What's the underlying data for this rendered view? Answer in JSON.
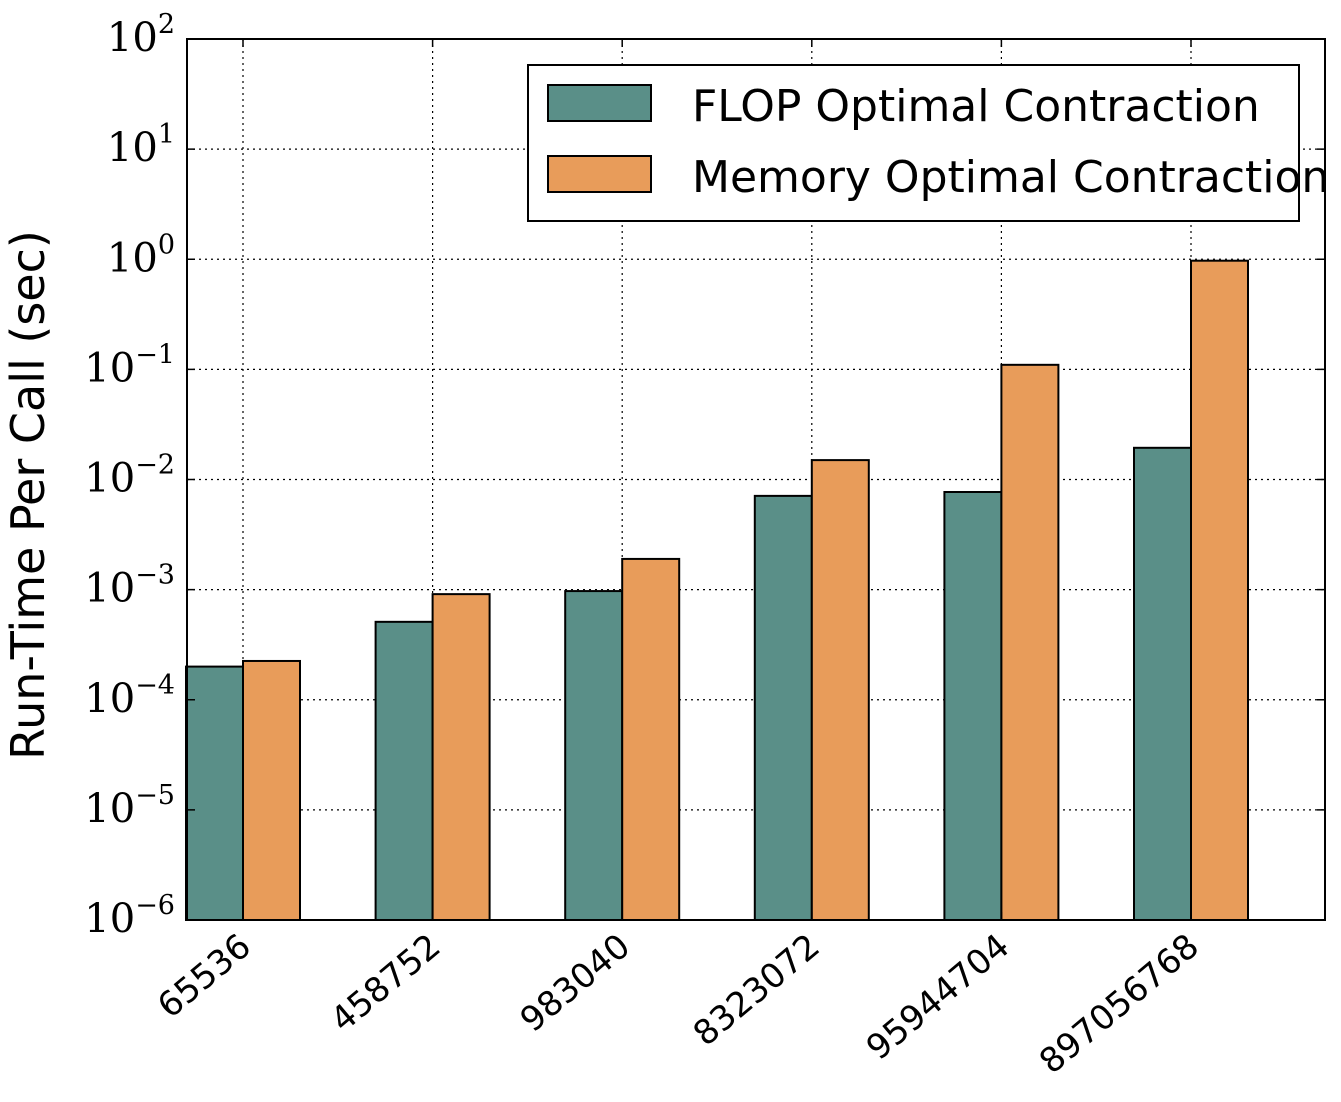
{
  "chart_data": {
    "type": "bar",
    "title": "",
    "xlabel": "",
    "ylabel": "Run-Time Per Call (sec)",
    "yscale": "log",
    "ylim": [
      1e-06,
      100
    ],
    "y_ticks": [
      -6,
      -5,
      -4,
      -3,
      -2,
      -1,
      0,
      1,
      2
    ],
    "grid": true,
    "legend_position": "top-right",
    "categories": [
      "65536",
      "458752",
      "983040",
      "8323072",
      "95944704",
      "897056768"
    ],
    "series": [
      {
        "name": "FLOP Optimal Contraction",
        "color": "#5a8f88",
        "values": [
          0.0002,
          0.00051,
          0.00097,
          0.0071,
          0.0077,
          0.0194
        ]
      },
      {
        "name": "Memory Optimal Contraction",
        "color": "#e89c5a",
        "values": [
          0.000225,
          0.00091,
          0.0019,
          0.015,
          0.11,
          0.97
        ]
      }
    ]
  }
}
